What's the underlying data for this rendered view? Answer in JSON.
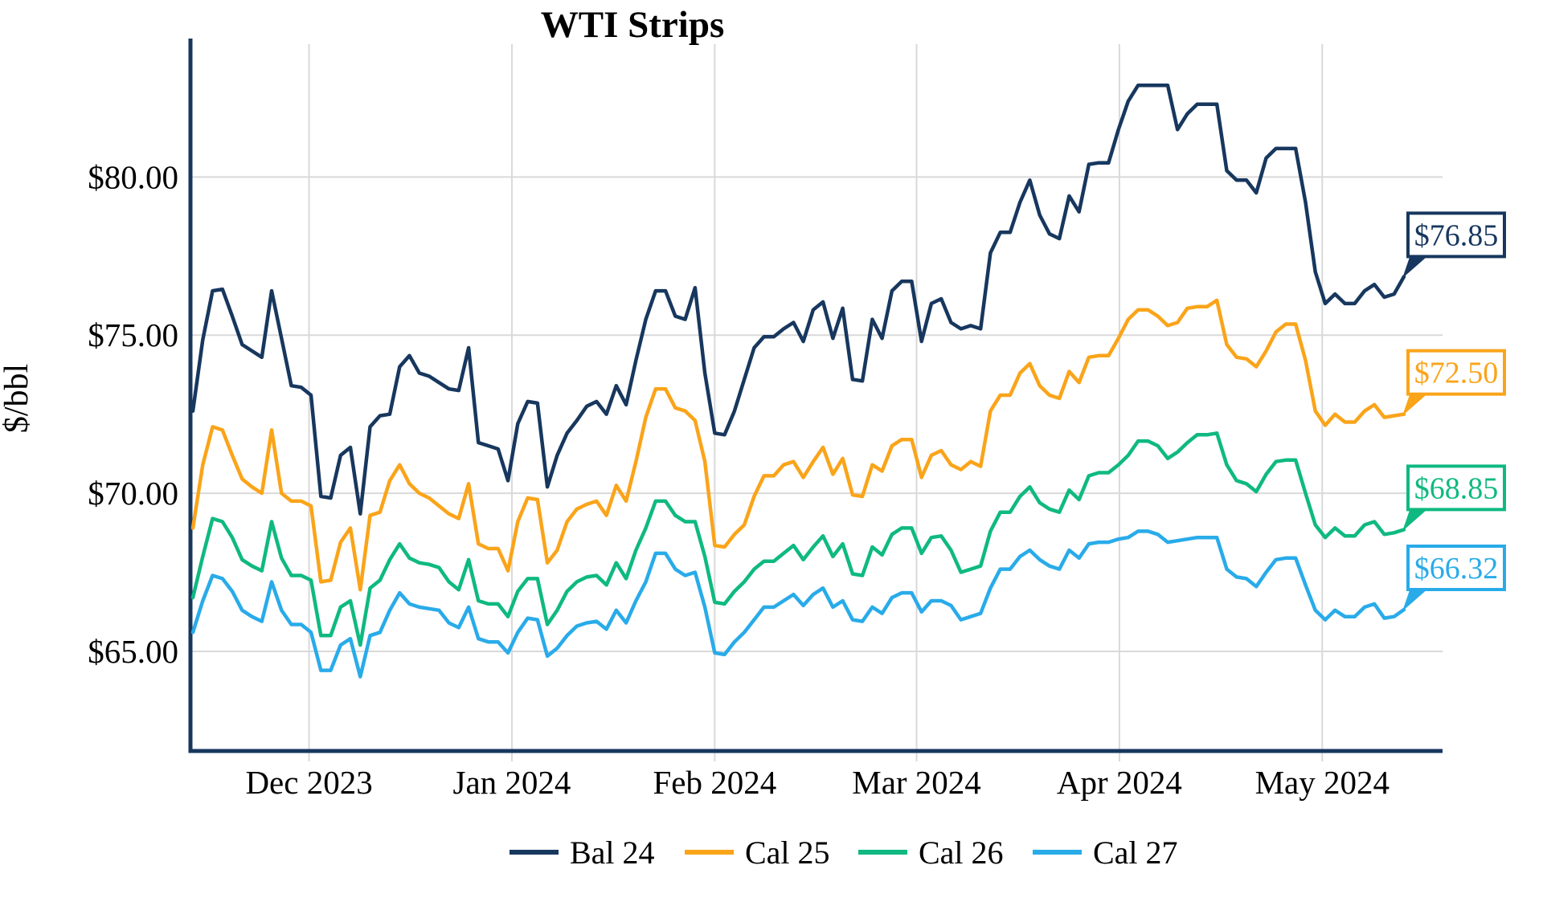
{
  "title": "WTI Strips",
  "colors": {
    "axis": "#17375e",
    "grid": "#d9d9d9",
    "text": "#000000",
    "background": "#ffffff"
  },
  "chart_data": {
    "type": "line",
    "title": "WTI Strips",
    "xlabel": "",
    "ylabel": "$/bbl",
    "ylim": [
      61.85,
      84.2
    ],
    "grid": true,
    "legend_position": "bottom",
    "y_ticks": [
      {
        "value": 80,
        "label": "$80.00"
      },
      {
        "value": 75,
        "label": "$75.00"
      },
      {
        "value": 70,
        "label": "$70.00"
      },
      {
        "value": 65,
        "label": "$65.00"
      }
    ],
    "x_ticks": [
      {
        "index": 11.8,
        "label": "Dec 2023"
      },
      {
        "index": 32.4,
        "label": "Jan 2024"
      },
      {
        "index": 53.0,
        "label": "Feb 2024"
      },
      {
        "index": 73.5,
        "label": "Mar 2024"
      },
      {
        "index": 94.1,
        "label": "Apr 2024"
      },
      {
        "index": 114.7,
        "label": "May 2024"
      }
    ],
    "series": [
      {
        "name": "Bal 24",
        "color": "#17375e",
        "end_label": "$76.85",
        "end_value": 76.85,
        "values": [
          72.6,
          74.85,
          76.4,
          76.45,
          75.6,
          74.7,
          74.5,
          74.3,
          76.4,
          74.9,
          73.4,
          73.35,
          73.1,
          69.9,
          69.85,
          71.2,
          71.45,
          69.35,
          72.1,
          72.45,
          72.5,
          74.0,
          74.35,
          73.8,
          73.7,
          73.5,
          73.3,
          73.25,
          74.6,
          71.6,
          71.5,
          71.4,
          70.4,
          72.2,
          72.9,
          72.85,
          70.2,
          71.2,
          71.9,
          72.3,
          72.75,
          72.9,
          72.5,
          73.4,
          72.8,
          74.2,
          75.5,
          76.4,
          76.4,
          75.6,
          75.5,
          76.5,
          73.8,
          71.9,
          71.85,
          72.6,
          73.6,
          74.6,
          74.95,
          74.95,
          75.2,
          75.4,
          74.8,
          75.8,
          76.05,
          74.9,
          75.85,
          73.6,
          73.55,
          75.5,
          74.9,
          76.4,
          76.7,
          76.7,
          74.8,
          76.0,
          76.15,
          75.4,
          75.2,
          75.3,
          75.2,
          77.6,
          78.25,
          78.25,
          79.2,
          79.9,
          78.8,
          78.2,
          78.05,
          79.4,
          78.9,
          80.4,
          80.45,
          80.45,
          81.5,
          82.4,
          82.9,
          82.9,
          82.9,
          82.9,
          81.5,
          82.0,
          82.3,
          82.3,
          82.3,
          80.2,
          79.9,
          79.9,
          79.5,
          80.6,
          80.9,
          80.9,
          80.9,
          79.2,
          77.0,
          76.0,
          76.3,
          76.0,
          76.0,
          76.4,
          76.6,
          76.2,
          76.3,
          76.85
        ]
      },
      {
        "name": "Cal 25",
        "color": "#faa41a",
        "end_label": "$72.50",
        "end_value": 72.5,
        "values": [
          68.9,
          70.9,
          72.1,
          72.0,
          71.2,
          70.45,
          70.2,
          70.0,
          72.0,
          70.0,
          69.75,
          69.75,
          69.6,
          67.2,
          67.25,
          68.45,
          68.9,
          66.95,
          69.3,
          69.4,
          70.4,
          70.9,
          70.3,
          70.0,
          69.85,
          69.6,
          69.35,
          69.2,
          70.3,
          68.4,
          68.25,
          68.25,
          67.55,
          69.1,
          69.85,
          69.8,
          67.8,
          68.2,
          69.1,
          69.5,
          69.65,
          69.75,
          69.3,
          70.25,
          69.75,
          71.0,
          72.4,
          73.3,
          73.3,
          72.7,
          72.6,
          72.3,
          71.0,
          68.35,
          68.3,
          68.7,
          69.0,
          69.9,
          70.55,
          70.55,
          70.9,
          71.0,
          70.5,
          71.0,
          71.45,
          70.6,
          71.1,
          69.95,
          69.9,
          70.9,
          70.7,
          71.5,
          71.7,
          71.7,
          70.5,
          71.2,
          71.35,
          70.9,
          70.75,
          71.0,
          70.85,
          72.6,
          73.1,
          73.1,
          73.8,
          74.1,
          73.4,
          73.1,
          73.0,
          73.85,
          73.5,
          74.3,
          74.35,
          74.35,
          74.9,
          75.5,
          75.8,
          75.8,
          75.6,
          75.3,
          75.4,
          75.85,
          75.9,
          75.9,
          76.1,
          74.7,
          74.3,
          74.25,
          74.0,
          74.5,
          75.1,
          75.35,
          75.35,
          74.2,
          72.6,
          72.15,
          72.5,
          72.25,
          72.25,
          72.6,
          72.8,
          72.4,
          72.45,
          72.5
        ]
      },
      {
        "name": "Cal 26",
        "color": "#0fb981",
        "end_label": "$68.85",
        "end_value": 68.85,
        "values": [
          66.7,
          68.0,
          69.2,
          69.1,
          68.6,
          67.9,
          67.7,
          67.55,
          69.1,
          67.95,
          67.4,
          67.4,
          67.25,
          65.5,
          65.5,
          66.4,
          66.6,
          65.2,
          67.0,
          67.25,
          67.9,
          68.4,
          67.95,
          67.8,
          67.75,
          67.65,
          67.2,
          66.95,
          67.9,
          66.6,
          66.5,
          66.5,
          66.1,
          66.9,
          67.3,
          67.3,
          65.85,
          66.3,
          66.9,
          67.2,
          67.35,
          67.4,
          67.1,
          67.8,
          67.3,
          68.2,
          68.9,
          69.75,
          69.75,
          69.3,
          69.1,
          69.1,
          68.0,
          66.55,
          66.5,
          66.9,
          67.2,
          67.6,
          67.85,
          67.85,
          68.1,
          68.35,
          67.9,
          68.3,
          68.65,
          68.0,
          68.4,
          67.45,
          67.4,
          68.3,
          68.05,
          68.7,
          68.9,
          68.9,
          68.1,
          68.6,
          68.65,
          68.2,
          67.5,
          67.6,
          67.7,
          68.8,
          69.4,
          69.4,
          69.9,
          70.2,
          69.7,
          69.5,
          69.4,
          70.1,
          69.8,
          70.55,
          70.65,
          70.65,
          70.9,
          71.2,
          71.65,
          71.65,
          71.5,
          71.1,
          71.3,
          71.6,
          71.85,
          71.85,
          71.9,
          70.9,
          70.4,
          70.3,
          70.05,
          70.6,
          71.0,
          71.05,
          71.05,
          70.0,
          69.0,
          68.6,
          68.9,
          68.65,
          68.65,
          69.0,
          69.1,
          68.7,
          68.75,
          68.85
        ]
      },
      {
        "name": "Cal 27",
        "color": "#29abe9",
        "end_label": "$66.32",
        "end_value": 66.32,
        "values": [
          65.6,
          66.6,
          67.4,
          67.3,
          66.9,
          66.3,
          66.1,
          65.95,
          67.2,
          66.3,
          65.85,
          65.85,
          65.6,
          64.4,
          64.4,
          65.2,
          65.4,
          64.2,
          65.5,
          65.6,
          66.3,
          66.85,
          66.5,
          66.4,
          66.35,
          66.3,
          65.9,
          65.75,
          66.4,
          65.4,
          65.3,
          65.3,
          64.95,
          65.6,
          66.05,
          66.0,
          64.85,
          65.1,
          65.5,
          65.8,
          65.9,
          65.95,
          65.7,
          66.3,
          65.9,
          66.6,
          67.2,
          68.1,
          68.1,
          67.6,
          67.4,
          67.5,
          66.4,
          64.95,
          64.9,
          65.3,
          65.6,
          66.0,
          66.4,
          66.4,
          66.6,
          66.8,
          66.45,
          66.8,
          67.0,
          66.4,
          66.6,
          66.0,
          65.95,
          66.4,
          66.2,
          66.7,
          66.85,
          66.85,
          66.25,
          66.6,
          66.6,
          66.45,
          66.0,
          66.1,
          66.2,
          67.0,
          67.6,
          67.6,
          68.0,
          68.2,
          67.9,
          67.7,
          67.6,
          68.2,
          67.95,
          68.4,
          68.45,
          68.45,
          68.55,
          68.6,
          68.8,
          68.8,
          68.7,
          68.45,
          68.5,
          68.55,
          68.6,
          68.6,
          68.6,
          67.6,
          67.35,
          67.3,
          67.05,
          67.5,
          67.9,
          67.95,
          67.95,
          67.1,
          66.3,
          66.0,
          66.3,
          66.1,
          66.1,
          66.4,
          66.5,
          66.05,
          66.1,
          66.32
        ]
      }
    ]
  }
}
